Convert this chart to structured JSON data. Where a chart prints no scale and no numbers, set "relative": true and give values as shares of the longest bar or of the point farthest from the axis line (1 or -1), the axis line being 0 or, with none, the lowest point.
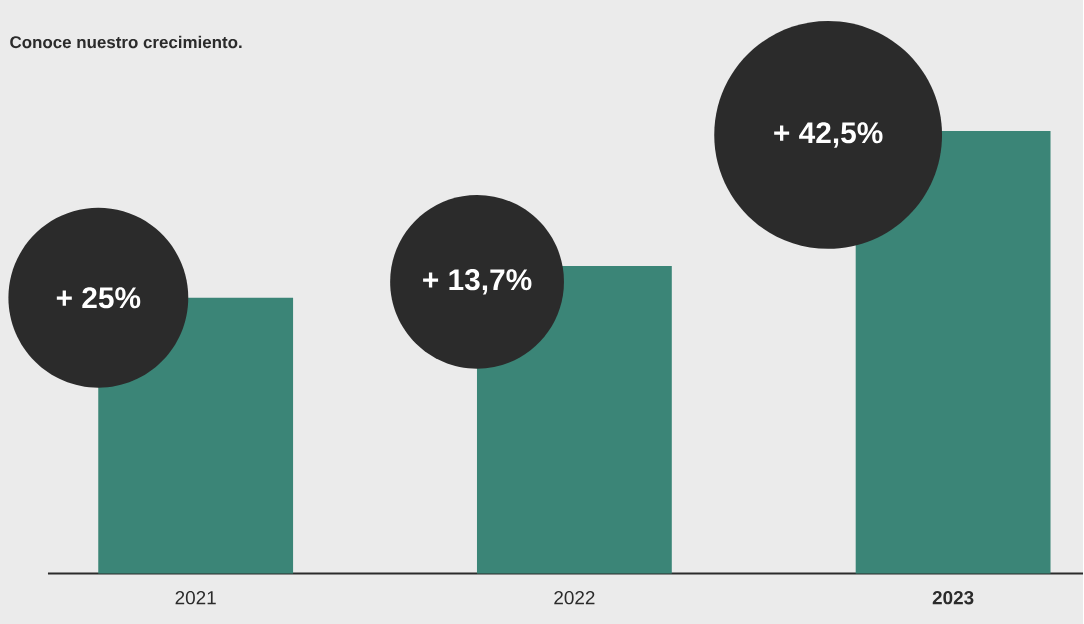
{
  "chart_data": {
    "type": "bar",
    "title": "Conoce nuestro crecimiento.",
    "categories": [
      "2021",
      "2022",
      "**2023**"
    ],
    "values": [
      0.623,
      0.695,
      1
    ],
    "relative": true,
    "color": "#3b8577",
    "annotations": [
      "+ 25%",
      "+ 13,7%",
      "+ 42,5%"
    ]
  }
}
